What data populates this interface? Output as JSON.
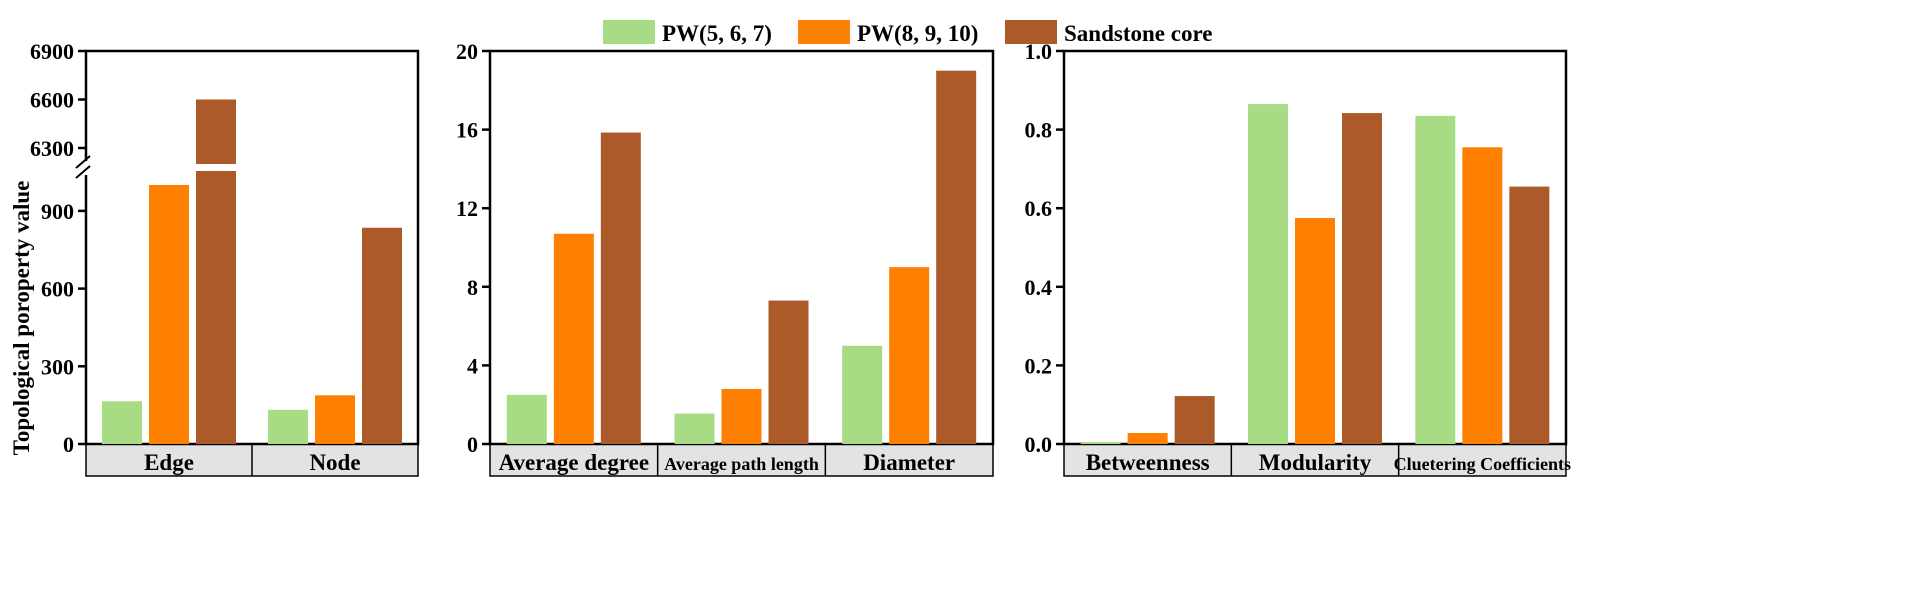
{
  "legend": [
    {
      "name": "PW(5, 6, 7)",
      "color": "#a8dc84"
    },
    {
      "name": "PW(8, 9, 10)",
      "color": "#ff7f00"
    },
    {
      "name": "Sandstone core",
      "color": "#ad5a2a"
    }
  ],
  "ylabel": "Topological poroperty value",
  "chart_data": [
    {
      "type": "bar",
      "categories": [
        "Edge",
        "Node"
      ],
      "series": [
        {
          "name": "PW(5, 6, 7)",
          "values": [
            165,
            132
          ]
        },
        {
          "name": "PW(8, 9, 10)",
          "values": [
            1000,
            188
          ]
        },
        {
          "name": "Sandstone core",
          "values": [
            6600,
            835
          ]
        }
      ],
      "ylabel": "Topological poroperty value",
      "axis_break": {
        "lower_range": [
          0,
          1000
        ],
        "upper_range": [
          6300,
          6900
        ]
      },
      "ticks_lower": [
        "0",
        "300",
        "600",
        "900"
      ],
      "ticks_upper": [
        "6300",
        "6600",
        "6900"
      ]
    },
    {
      "type": "bar",
      "categories": [
        "Average degree",
        "Average path length",
        "Diameter"
      ],
      "series": [
        {
          "name": "PW(5, 6, 7)",
          "values": [
            2.5,
            1.55,
            5.0
          ]
        },
        {
          "name": "PW(8, 9, 10)",
          "values": [
            10.7,
            2.8,
            9.0
          ]
        },
        {
          "name": "Sandstone core",
          "values": [
            15.85,
            7.3,
            19.0
          ]
        }
      ],
      "ylim": [
        0,
        20
      ],
      "ticks": [
        "0",
        "4",
        "8",
        "12",
        "16",
        "20"
      ]
    },
    {
      "type": "bar",
      "categories": [
        "Betweenness",
        "Modularity",
        "Cluetering Coefficients"
      ],
      "series": [
        {
          "name": "PW(5, 6, 7)",
          "values": [
            0.005,
            0.865,
            0.835
          ]
        },
        {
          "name": "PW(8, 9, 10)",
          "values": [
            0.028,
            0.575,
            0.755
          ]
        },
        {
          "name": "Sandstone core",
          "values": [
            0.122,
            0.842,
            0.655
          ]
        }
      ],
      "ylim": [
        0,
        1.0
      ],
      "ticks": [
        "0.0",
        "0.2",
        "0.4",
        "0.6",
        "0.8",
        "1.0"
      ]
    }
  ]
}
